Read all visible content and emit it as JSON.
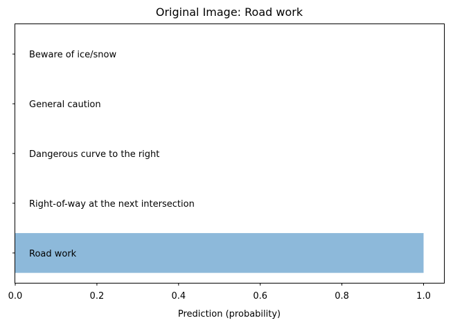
{
  "chart_data": {
    "type": "bar",
    "orientation": "horizontal",
    "title": "Original Image: Road work",
    "xlabel": "Prediction (probability)",
    "ylabel": "",
    "xlim": [
      0.0,
      1.05
    ],
    "xticks": [
      "0.0",
      "0.2",
      "0.4",
      "0.6",
      "0.8",
      "1.0"
    ],
    "xtick_values": [
      0.0,
      0.2,
      0.4,
      0.6,
      0.8,
      1.0
    ],
    "categories": [
      "Road work",
      "Right-of-way at the next intersection",
      "Dangerous curve to the right",
      "General caution",
      "Beware of ice/snow"
    ],
    "values": [
      1.0,
      0.0,
      0.0,
      0.0,
      0.0
    ],
    "bar_color": "#8db9da",
    "grid": false
  }
}
